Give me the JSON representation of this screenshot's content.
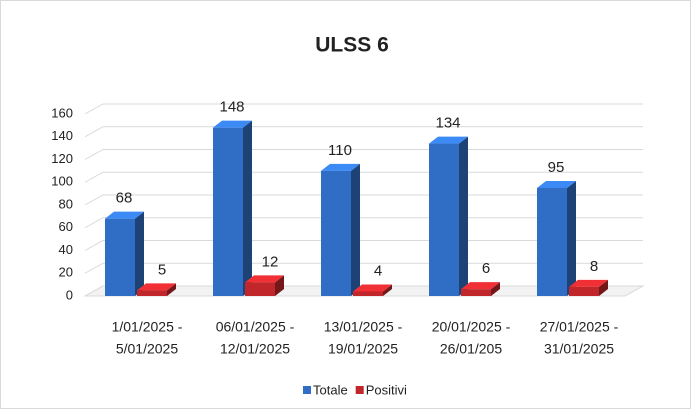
{
  "chart_data": {
    "type": "bar3d",
    "title": "ULSS 6",
    "categories": [
      [
        "1/01/2025 -",
        "5/01/2025"
      ],
      [
        "06/01/2025 -",
        "12/01/2025"
      ],
      [
        "13/01/2025 -",
        "19/01/2025"
      ],
      [
        "20/01/2025 -",
        "26/01/205"
      ],
      [
        "27/01/2025 -",
        "31/01/2025"
      ]
    ],
    "series": [
      {
        "name": "Totale",
        "color": "#2f6ec4",
        "values": [
          68,
          148,
          110,
          134,
          95
        ]
      },
      {
        "name": "Positivi",
        "color": "#c0262a",
        "values": [
          5,
          12,
          4,
          6,
          8
        ]
      }
    ],
    "ylim": [
      0,
      160
    ],
    "yticks": [
      0,
      20,
      40,
      60,
      80,
      100,
      120,
      140,
      160
    ],
    "grid": true,
    "legend": "bottom"
  }
}
